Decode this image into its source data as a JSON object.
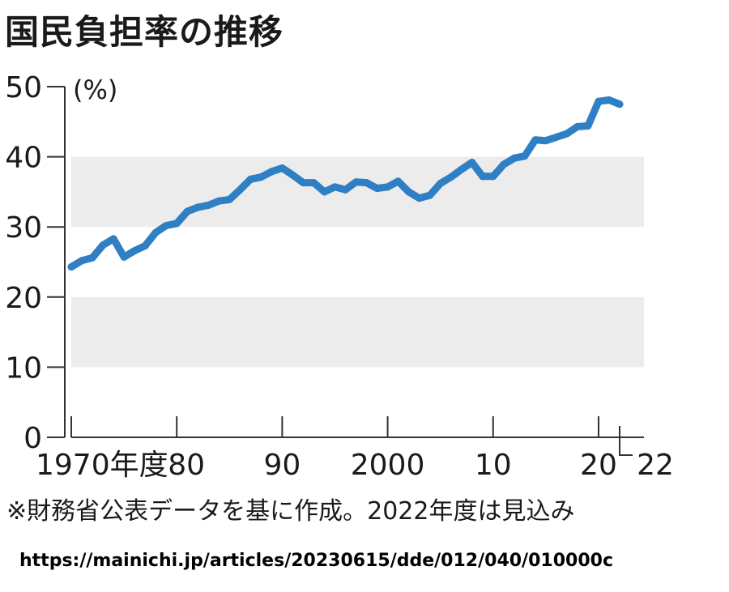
{
  "title": "国民負担率の推移",
  "note": "※財務省公表データを基に作成。2022年度は見込み",
  "source_url": "https://mainichi.jp/articles/20230615/dde/012/040/010000c",
  "colors": {
    "line": "#2f7fc4",
    "band": "#ececec",
    "axis": "#333333"
  },
  "chart_data": {
    "type": "line",
    "title": "国民負担率の推移",
    "ylabel": "(%)",
    "xlabel": "",
    "ylim": [
      0,
      50
    ],
    "xlim": [
      1970,
      2022
    ],
    "grid": "alternating-bands",
    "yticks": [
      {
        "value": 0,
        "label": "0"
      },
      {
        "value": 10,
        "label": "10"
      },
      {
        "value": 20,
        "label": "20"
      },
      {
        "value": 30,
        "label": "30"
      },
      {
        "value": 40,
        "label": "40"
      },
      {
        "value": 50,
        "label": "50"
      }
    ],
    "xticks": [
      {
        "value": 1970,
        "label": "1970年度"
      },
      {
        "value": 1980,
        "label": "80"
      },
      {
        "value": 1990,
        "label": "90"
      },
      {
        "value": 2000,
        "label": "2000"
      },
      {
        "value": 2010,
        "label": "10"
      },
      {
        "value": 2020,
        "label": "20"
      },
      {
        "value": 2022,
        "label": "22"
      }
    ],
    "series": [
      {
        "x": [
          1970,
          1971,
          1972,
          1973,
          1974,
          1975,
          1976,
          1977,
          1978,
          1979,
          1980,
          1981,
          1982,
          1983,
          1984,
          1985,
          1986,
          1987,
          1988,
          1989,
          1990,
          1991,
          1992,
          1993,
          1994,
          1995,
          1996,
          1997,
          1998,
          1999,
          2000,
          2001,
          2002,
          2003,
          2004,
          2005,
          2006,
          2007,
          2008,
          2009,
          2010,
          2011,
          2012,
          2013,
          2014,
          2015,
          2016,
          2017,
          2018,
          2019,
          2020,
          2021,
          2022
        ],
        "values": [
          24.3,
          25.2,
          25.6,
          27.4,
          28.3,
          25.7,
          26.6,
          27.3,
          29.2,
          30.2,
          30.5,
          32.2,
          32.8,
          33.1,
          33.7,
          33.9,
          35.3,
          36.8,
          37.1,
          37.9,
          38.4,
          37.4,
          36.3,
          36.3,
          35.0,
          35.7,
          35.3,
          36.4,
          36.3,
          35.5,
          35.7,
          36.5,
          35.0,
          34.1,
          34.5,
          36.2,
          37.1,
          38.2,
          39.2,
          37.2,
          37.2,
          38.9,
          39.8,
          40.1,
          42.4,
          42.3,
          42.8,
          43.3,
          44.3,
          44.4,
          47.9,
          48.1,
          47.5
        ]
      }
    ]
  }
}
